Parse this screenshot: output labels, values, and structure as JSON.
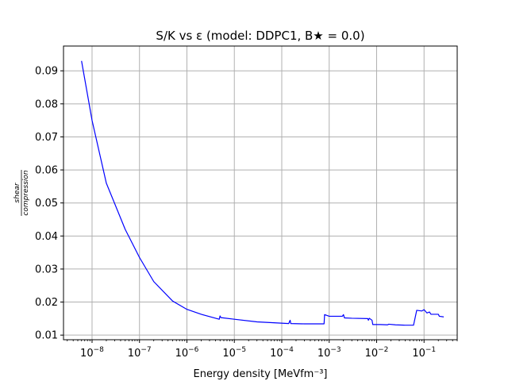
{
  "chart_data": {
    "type": "line",
    "title": "S/K vs ε (model: DDPC1, B★ = 0.0)",
    "xlabel": "Energy density [MeVfm⁻³]",
    "ylabel": {
      "numerator": "shear",
      "denominator": "compression"
    },
    "xscale": "log",
    "xlim": [
      2.5e-09,
      0.5
    ],
    "ylim": [
      0.0086,
      0.0975
    ],
    "grid": true,
    "x_ticks": [
      1e-08,
      1e-07,
      1e-06,
      1e-05,
      0.0001,
      0.001,
      0.01,
      0.1
    ],
    "x_tick_labels": [
      {
        "base": "10",
        "exp": "−8"
      },
      {
        "base": "10",
        "exp": "−7"
      },
      {
        "base": "10",
        "exp": "−6"
      },
      {
        "base": "10",
        "exp": "−5"
      },
      {
        "base": "10",
        "exp": "−4"
      },
      {
        "base": "10",
        "exp": "−3"
      },
      {
        "base": "10",
        "exp": "−2"
      },
      {
        "base": "10",
        "exp": "−1"
      }
    ],
    "y_ticks": [
      0.01,
      0.02,
      0.03,
      0.04,
      0.05,
      0.06,
      0.07,
      0.08,
      0.09
    ],
    "y_tick_labels": [
      "0.01",
      "0.02",
      "0.03",
      "0.04",
      "0.05",
      "0.06",
      "0.07",
      "0.08",
      "0.09"
    ],
    "series": [
      {
        "color": "#0000ff",
        "x": [
          6e-09,
          1e-08,
          2e-08,
          5e-08,
          1e-07,
          2e-07,
          5e-07,
          1e-06,
          2e-06,
          4.8e-06,
          5e-06,
          5.2e-06,
          1e-05,
          3e-05,
          0.00014,
          0.00015,
          0.000155,
          0.0003,
          0.00078,
          0.0008,
          0.001,
          0.0019,
          0.002,
          0.0021,
          0.003,
          0.0065,
          0.0067,
          0.007,
          0.008,
          0.0083,
          0.012,
          0.017,
          0.018,
          0.025,
          0.04,
          0.06,
          0.07,
          0.09,
          0.1,
          0.115,
          0.13,
          0.14,
          0.2,
          0.21,
          0.26
        ],
        "y": [
          0.093,
          0.075,
          0.056,
          0.042,
          0.0335,
          0.0262,
          0.0203,
          0.0178,
          0.0163,
          0.0148,
          0.0158,
          0.0153,
          0.0148,
          0.014,
          0.0135,
          0.0145,
          0.0135,
          0.0134,
          0.0134,
          0.0162,
          0.0157,
          0.0157,
          0.0162,
          0.0152,
          0.0151,
          0.015,
          0.0145,
          0.0151,
          0.0145,
          0.0132,
          0.0132,
          0.0131,
          0.0133,
          0.0131,
          0.013,
          0.013,
          0.0175,
          0.0173,
          0.0177,
          0.0167,
          0.017,
          0.0163,
          0.0163,
          0.0157,
          0.0155
        ]
      }
    ]
  }
}
